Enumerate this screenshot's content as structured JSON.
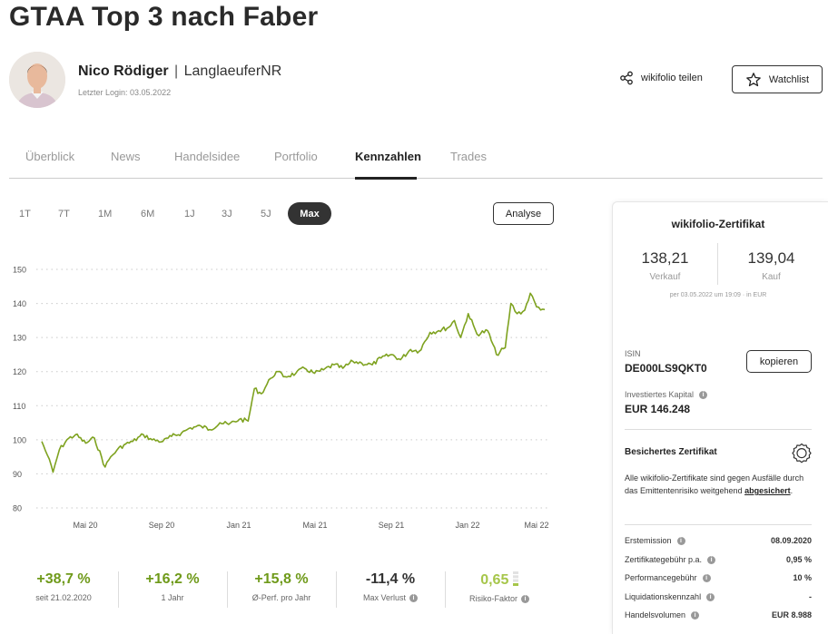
{
  "page": {
    "title": "GTAA Top 3 nach Faber"
  },
  "trader": {
    "name": "Nico Rödiger",
    "separator": "|",
    "nickname": "LanglaeuferNR",
    "last_login": "Letzter Login: 03.05.2022"
  },
  "actions": {
    "share_label": "wikifolio teilen",
    "watchlist_label": "Watchlist"
  },
  "tabs": [
    {
      "label": "Überblick",
      "active": false
    },
    {
      "label": "News",
      "active": false
    },
    {
      "label": "Handelsidee",
      "active": false
    },
    {
      "label": "Portfolio",
      "active": false
    },
    {
      "label": "Kennzahlen",
      "active": true
    },
    {
      "label": "Trades",
      "active": false
    }
  ],
  "ranges": [
    "1T",
    "7T",
    "1M",
    "6M",
    "1J",
    "3J",
    "5J",
    "Max"
  ],
  "active_range": "Max",
  "analyse_label": "Analyse",
  "chart_data": {
    "type": "line",
    "title": "",
    "xlabel": "",
    "ylabel": "",
    "x_ticks": [
      "Mai 20",
      "Sep 20",
      "Jan 21",
      "Mai 21",
      "Sep 21",
      "Jan 22",
      "Mai 22"
    ],
    "y_ticks": [
      80,
      90,
      100,
      110,
      120,
      130,
      140,
      150
    ],
    "ylim": [
      80,
      150
    ],
    "grid": "horizontal dotted",
    "line_color": "#7ea21f",
    "series": [
      {
        "name": "",
        "x": [
          "2020-02-21",
          "2020-03-01",
          "2020-03-10",
          "2020-03-20",
          "2020-04-01",
          "2020-04-15",
          "2020-05-01",
          "2020-05-15",
          "2020-06-01",
          "2020-06-10",
          "2020-06-20",
          "2020-07-01",
          "2020-07-15",
          "2020-08-01",
          "2020-08-15",
          "2020-09-01",
          "2020-09-15",
          "2020-10-01",
          "2020-10-15",
          "2020-11-01",
          "2020-11-15",
          "2020-12-01",
          "2020-12-15",
          "2021-01-01",
          "2021-01-15",
          "2021-01-25",
          "2021-02-05",
          "2021-02-20",
          "2021-03-01",
          "2021-03-15",
          "2021-04-01",
          "2021-04-15",
          "2021-05-01",
          "2021-05-15",
          "2021-06-01",
          "2021-06-15",
          "2021-07-01",
          "2021-07-15",
          "2021-08-01",
          "2021-08-15",
          "2021-09-01",
          "2021-09-15",
          "2021-10-01",
          "2021-10-15",
          "2021-11-01",
          "2021-11-15",
          "2021-12-01",
          "2021-12-10",
          "2021-12-20",
          "2022-01-01",
          "2022-01-15",
          "2022-02-01",
          "2022-02-15",
          "2022-03-01",
          "2022-03-10",
          "2022-03-20",
          "2022-04-01",
          "2022-04-10",
          "2022-04-20",
          "2022-05-03"
        ],
        "values": [
          99.5,
          95.5,
          90.5,
          97.0,
          100.0,
          101.5,
          99.0,
          100.5,
          92.0,
          95.0,
          97.0,
          98.5,
          99.5,
          101.5,
          100.0,
          99.5,
          101.0,
          102.0,
          103.5,
          104.0,
          103.0,
          105.0,
          104.5,
          106.0,
          105.5,
          115.0,
          113.5,
          118.0,
          120.0,
          118.5,
          119.5,
          121.0,
          119.5,
          120.5,
          122.0,
          121.0,
          123.0,
          122.5,
          122.0,
          124.0,
          125.0,
          123.5,
          126.5,
          126.0,
          131.5,
          132.0,
          133.0,
          135.0,
          130.0,
          137.0,
          131.0,
          132.0,
          125.0,
          127.0,
          140.0,
          137.0,
          138.0,
          143.0,
          139.0,
          138.2
        ]
      }
    ]
  },
  "kpis": [
    {
      "value": "+38,7 %",
      "label": "seit 21.02.2020",
      "color": "green",
      "info": false
    },
    {
      "value": "+16,2 %",
      "label": "1 Jahr",
      "color": "green",
      "info": false
    },
    {
      "value": "+15,8 %",
      "label": "Ø-Perf. pro Jahr",
      "color": "green",
      "info": false
    },
    {
      "value": "-11,4 %",
      "label": "Max Verlust",
      "color": "dark",
      "info": true
    },
    {
      "value": "0,65",
      "label": "Risiko-Faktor",
      "color": "lime",
      "info": true
    }
  ],
  "certificate": {
    "title": "wikifolio-Zertifikat",
    "sell_value": "138,21",
    "sell_label": "Verkauf",
    "buy_value": "139,04",
    "buy_label": "Kauf",
    "as_of": "per 03.05.2022 um 19:09  ·  in EUR",
    "isin_label": "ISIN",
    "isin_value": "DE000LS9QKT0",
    "copy_label": "kopieren",
    "capital_label": "Investiertes Kapital",
    "capital_value": "EUR 146.248",
    "secured_title": "Besichertes Zertifikat",
    "secured_text": "Alle wikifolio-Zertifikate sind gegen Ausfälle durch das Emittentenrisiko weitgehend ",
    "secured_link": "abgesichert",
    "secured_end": ".",
    "rows": [
      {
        "label": "Erstemission",
        "value": "08.09.2020"
      },
      {
        "label": "Zertifikategebühr p.a.",
        "value": "0,95 %"
      },
      {
        "label": "Performancegebühr",
        "value": "10 %"
      },
      {
        "label": "Liquidationskennzahl",
        "value": "-"
      },
      {
        "label": "Handelsvolumen",
        "value": "EUR 8.988"
      }
    ]
  }
}
